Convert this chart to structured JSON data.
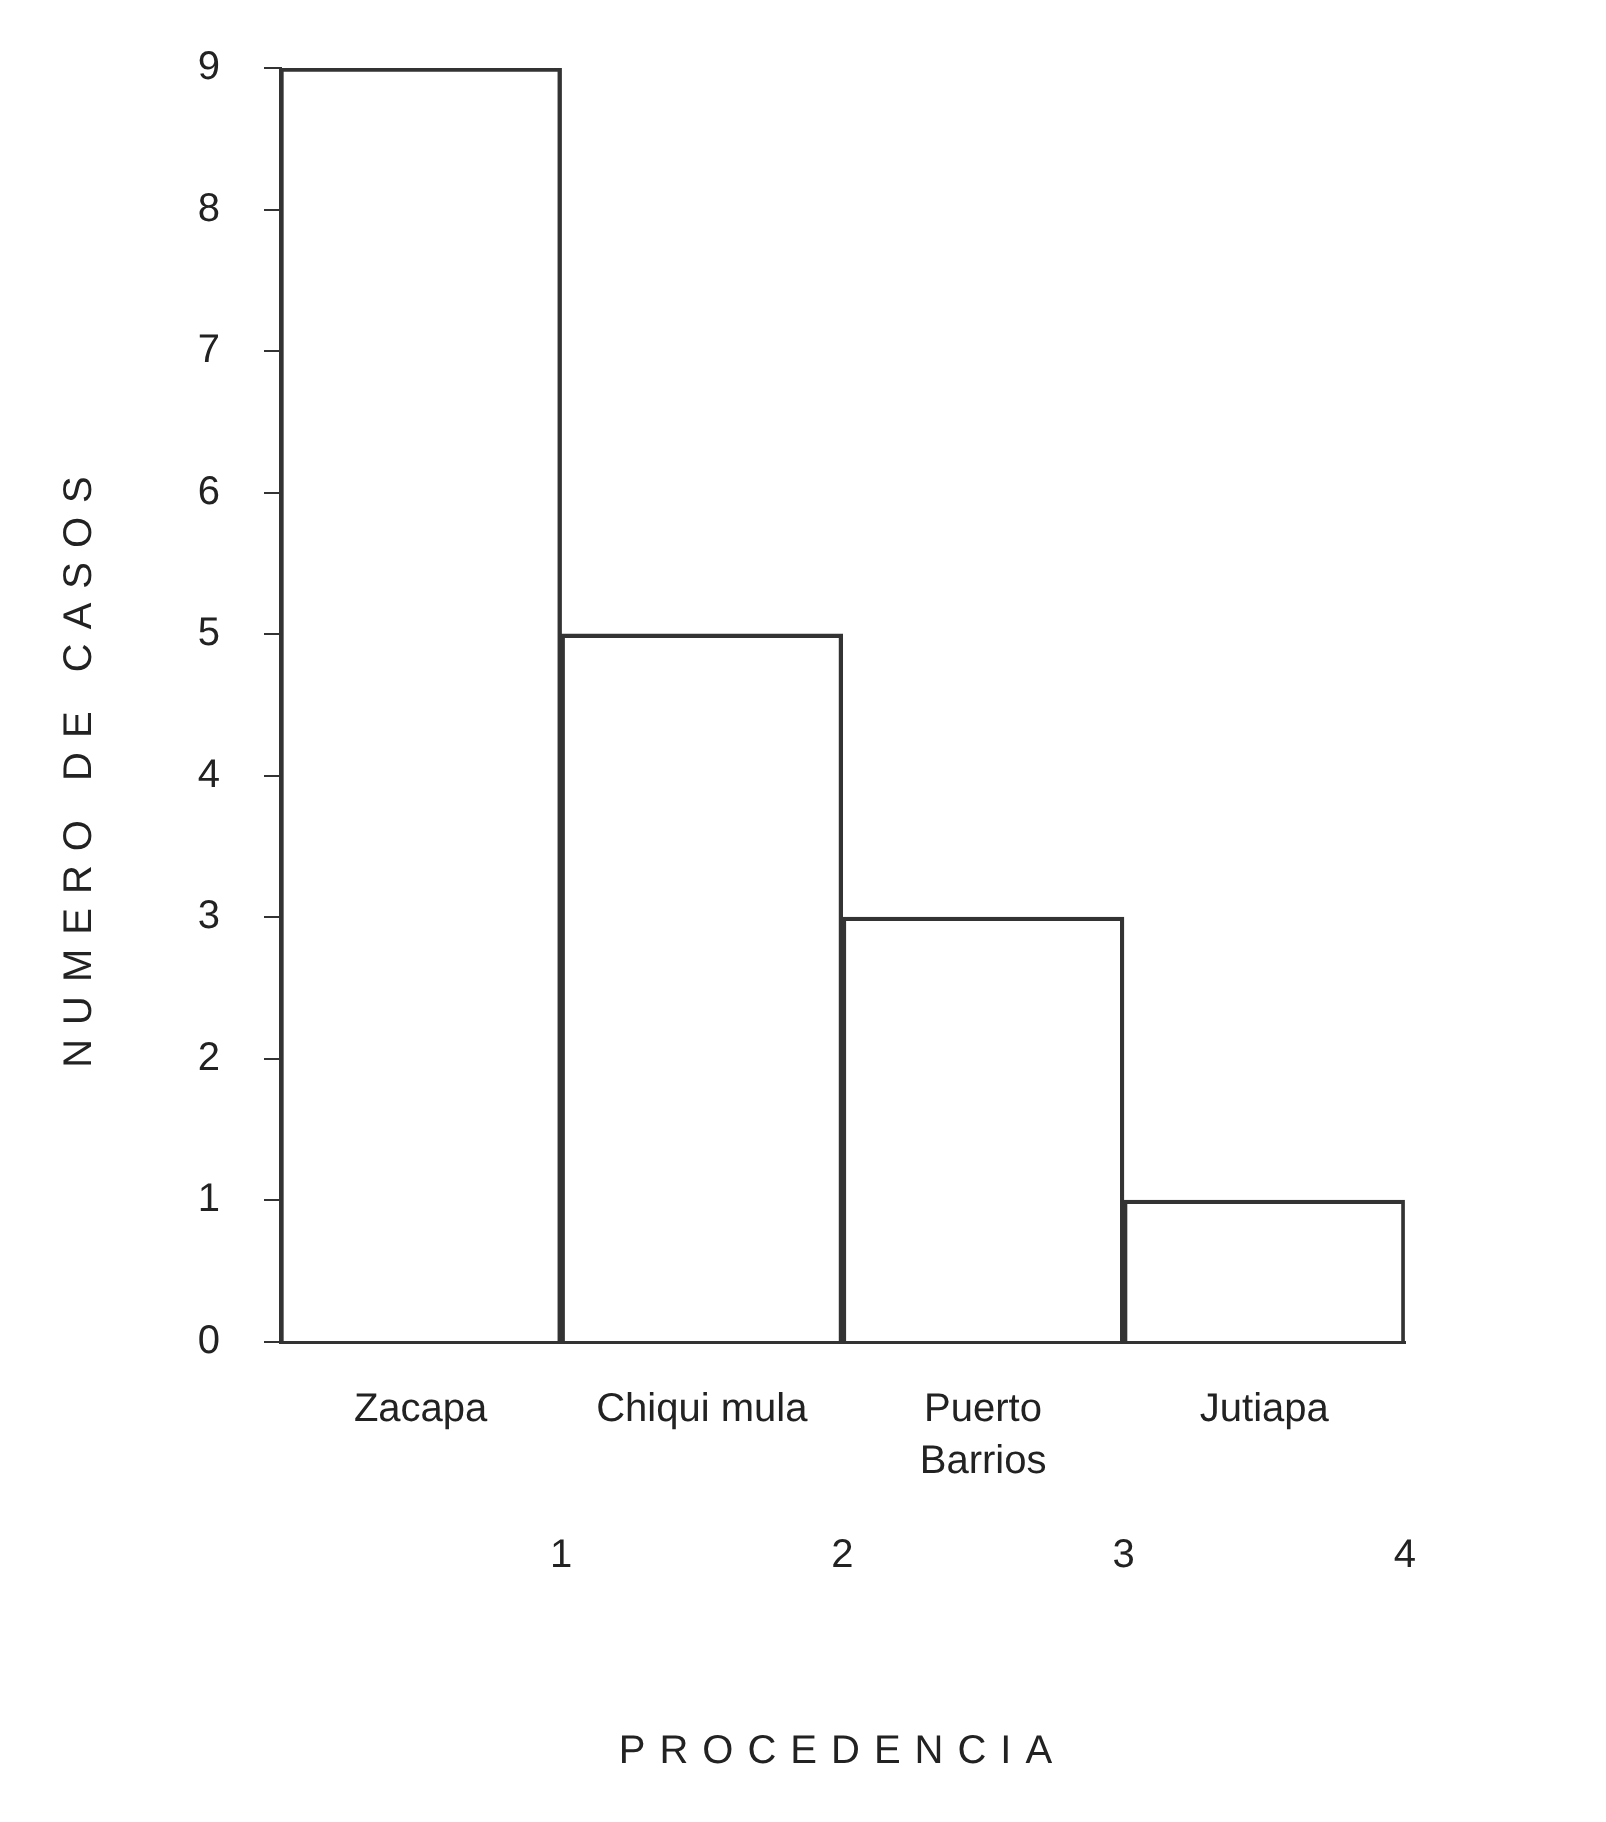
{
  "chart_data": {
    "type": "histogram",
    "xlabel": "PROCEDENCIA",
    "ylabel": "NUMERO DE CASOS",
    "categories": [
      "Zacapa",
      "Chiqui mula",
      "Puerto\nBarrios",
      "Jutiapa"
    ],
    "bins": [
      0,
      1,
      2,
      3,
      4
    ],
    "values": [
      9,
      5,
      3,
      1
    ],
    "color": "#333333",
    "xlim": [
      0,
      4
    ],
    "xticks": [
      1,
      2,
      3,
      4
    ],
    "ylim": [
      0,
      9
    ],
    "yticks": [
      0,
      1,
      2,
      3,
      4,
      5,
      6,
      7,
      8,
      9
    ],
    "grid": false,
    "legend": false
  }
}
